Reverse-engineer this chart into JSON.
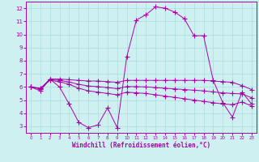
{
  "xlabel": "Windchill (Refroidissement éolien,°C)",
  "bg_color": "#cff0f0",
  "grid_color": "#aadddd",
  "line_color": "#aa00aa",
  "xlim": [
    -0.5,
    23.5
  ],
  "ylim": [
    2.5,
    12.5
  ],
  "xticks": [
    0,
    1,
    2,
    3,
    4,
    5,
    6,
    7,
    8,
    9,
    10,
    11,
    12,
    13,
    14,
    15,
    16,
    17,
    18,
    19,
    20,
    21,
    22,
    23
  ],
  "yticks": [
    3,
    4,
    5,
    6,
    7,
    8,
    9,
    10,
    11,
    12
  ],
  "series1_x": [
    0,
    1,
    2,
    3,
    4,
    5,
    6,
    7,
    8,
    9,
    10,
    11,
    12,
    13,
    14,
    15,
    16,
    17,
    18,
    19,
    20,
    21,
    22,
    23
  ],
  "series1_y": [
    6.0,
    5.7,
    6.6,
    6.0,
    4.7,
    3.3,
    2.9,
    3.1,
    4.4,
    2.9,
    8.3,
    11.1,
    11.5,
    12.1,
    12.0,
    11.7,
    11.2,
    9.9,
    9.9,
    6.5,
    4.8,
    3.7,
    5.6,
    4.7
  ],
  "series2_x": [
    0,
    1,
    2,
    3,
    4,
    5,
    6,
    7,
    8,
    9,
    10,
    11,
    12,
    13,
    14,
    15,
    16,
    17,
    18,
    19,
    20,
    21,
    22,
    23
  ],
  "series2_y": [
    6.0,
    5.85,
    6.6,
    6.6,
    6.55,
    6.5,
    6.45,
    6.45,
    6.4,
    6.35,
    6.5,
    6.5,
    6.5,
    6.5,
    6.5,
    6.5,
    6.5,
    6.5,
    6.5,
    6.45,
    6.4,
    6.35,
    6.1,
    5.8
  ],
  "series3_x": [
    0,
    1,
    2,
    3,
    4,
    5,
    6,
    7,
    8,
    9,
    10,
    11,
    12,
    13,
    14,
    15,
    16,
    17,
    18,
    19,
    20,
    21,
    22,
    23
  ],
  "series3_y": [
    6.0,
    5.9,
    6.5,
    6.4,
    6.2,
    5.9,
    5.7,
    5.6,
    5.5,
    5.4,
    5.6,
    5.55,
    5.5,
    5.4,
    5.3,
    5.2,
    5.1,
    5.0,
    4.9,
    4.8,
    4.7,
    4.65,
    4.85,
    4.55
  ],
  "series4_x": [
    0,
    1,
    2,
    3,
    4,
    5,
    6,
    7,
    8,
    9,
    10,
    11,
    12,
    13,
    14,
    15,
    16,
    17,
    18,
    19,
    20,
    21,
    22,
    23
  ],
  "series4_y": [
    6.0,
    5.87,
    6.55,
    6.5,
    6.37,
    6.2,
    6.07,
    6.02,
    5.95,
    5.87,
    6.03,
    6.02,
    6.0,
    5.95,
    5.9,
    5.85,
    5.8,
    5.75,
    5.7,
    5.62,
    5.55,
    5.5,
    5.47,
    5.17
  ]
}
